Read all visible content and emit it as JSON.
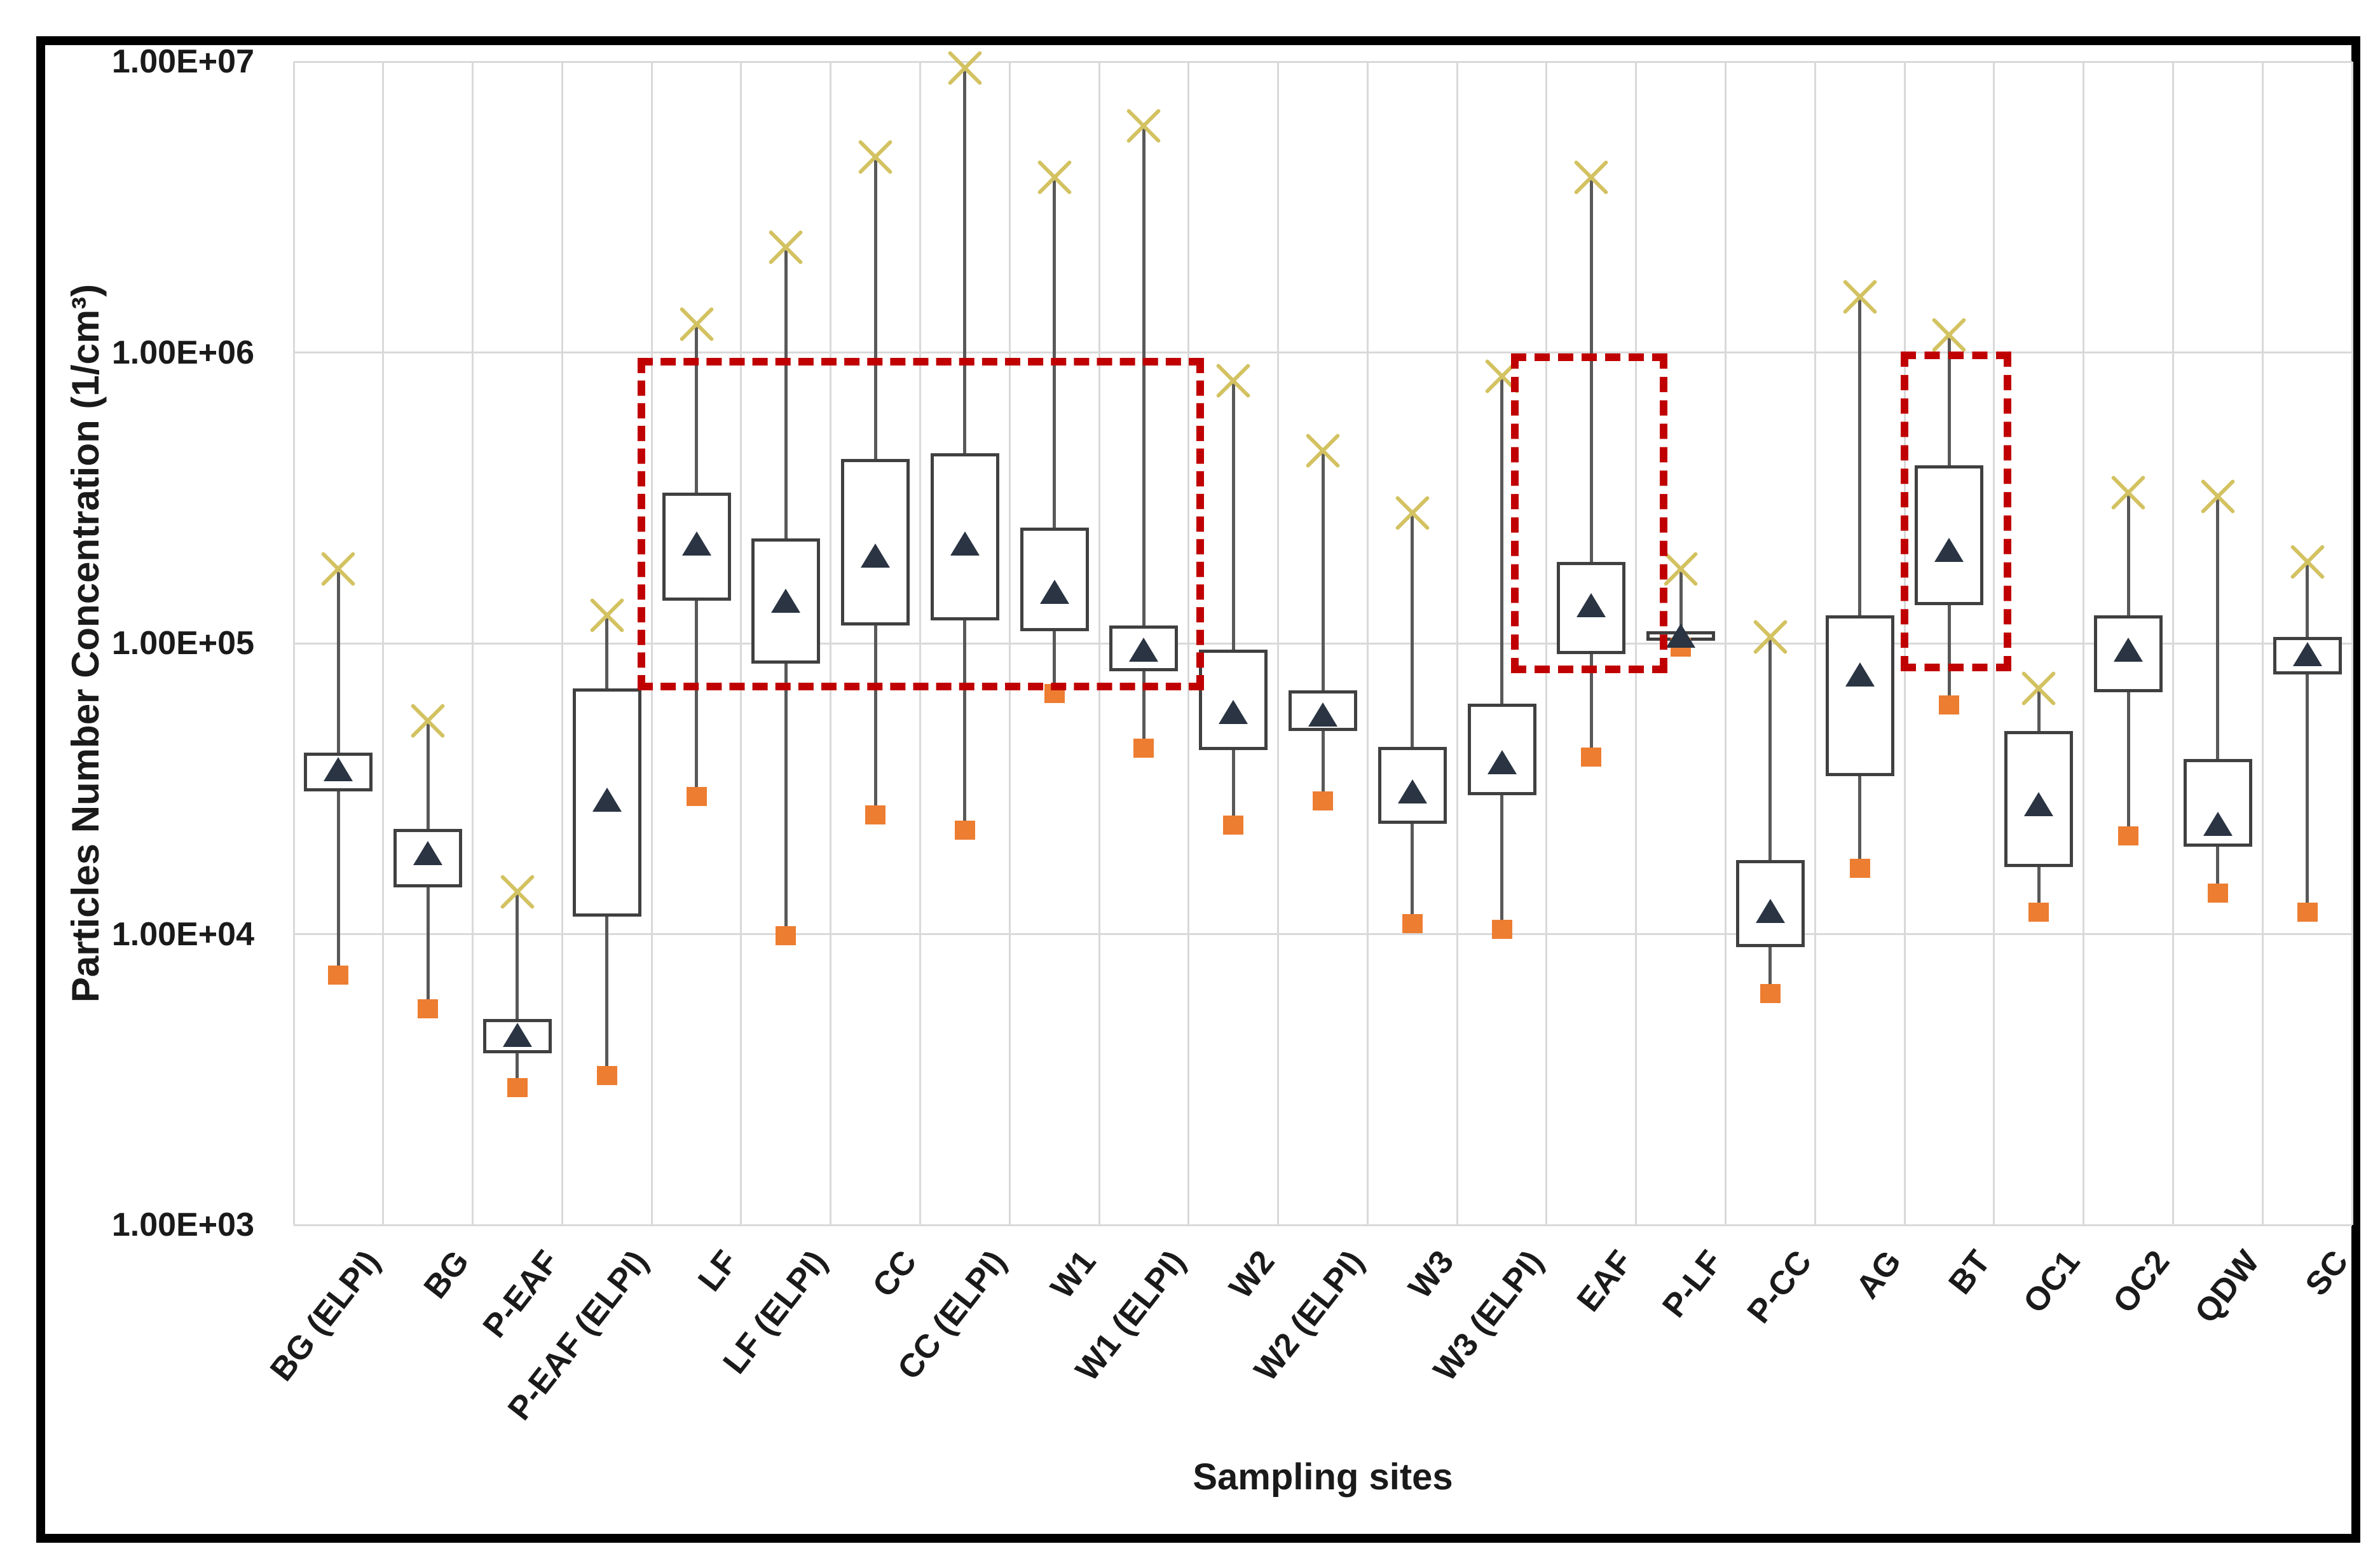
{
  "figure": {
    "y_axis_title": "Particles Number Concentration  (1/cm³)",
    "x_axis_title": "Sampling sites"
  },
  "chart_data": {
    "type": "box",
    "title": "",
    "xlabel": "Sampling sites",
    "ylabel": "Particles Number Concentration  (1/cm³)",
    "y_scale": "log",
    "ylim": [
      1000,
      10000000
    ],
    "grid": true,
    "legend_position": "none",
    "marker_meaning": {
      "max": "pale-yellow-x-marker",
      "mean": "dark-navy-triangle-marker",
      "min": "orange-square-marker",
      "box": "interquartile-range-white-box"
    },
    "y_ticks": [
      {
        "label": "1.00E+07",
        "value": 10000000
      },
      {
        "label": "1.00E+06",
        "value": 1000000
      },
      {
        "label": "1.00E+05",
        "value": 100000
      },
      {
        "label": "1.00E+04",
        "value": 10000
      },
      {
        "label": "1.00E+03",
        "value": 1000
      }
    ],
    "boxes": [
      {
        "site": "BG (ELPI)",
        "min": 7300,
        "q1": 31000,
        "mean": 37000,
        "q3": 42000,
        "max": 180000
      },
      {
        "site": "BG",
        "min": 5600,
        "q1": 14500,
        "mean": 19000,
        "q3": 23000,
        "max": 54000
      },
      {
        "site": "P-EAF",
        "min": 3000,
        "q1": 3900,
        "mean": 4500,
        "q3": 5100,
        "max": 14000
      },
      {
        "site": "P-EAF (ELPI)",
        "min": 3300,
        "q1": 11500,
        "mean": 29000,
        "q3": 70000,
        "max": 125000
      },
      {
        "site": "LF",
        "min": 30000,
        "q1": 140000,
        "mean": 220000,
        "q3": 330000,
        "max": 1250000
      },
      {
        "site": "LF (ELPI)",
        "min": 10000,
        "q1": 85000,
        "mean": 140000,
        "q3": 230000,
        "max": 2300000
      },
      {
        "site": "CC",
        "min": 26000,
        "q1": 115000,
        "mean": 200000,
        "q3": 430000,
        "max": 4700000
      },
      {
        "site": "CC (ELPI)",
        "min": 23000,
        "q1": 120000,
        "mean": 220000,
        "q3": 450000,
        "max": 9500000
      },
      {
        "site": "W1",
        "min": 68000,
        "q1": 110000,
        "mean": 150000,
        "q3": 250000,
        "max": 4000000
      },
      {
        "site": "W1 (ELPI)",
        "min": 44000,
        "q1": 80000,
        "mean": 95000,
        "q3": 115000,
        "max": 6000000
      },
      {
        "site": "W2",
        "min": 24000,
        "q1": 43000,
        "mean": 58000,
        "q3": 95000,
        "max": 800000
      },
      {
        "site": "W2 (ELPI)",
        "min": 29000,
        "q1": 50000,
        "mean": 57000,
        "q3": 69000,
        "max": 460000
      },
      {
        "site": "W3",
        "min": 11000,
        "q1": 24000,
        "mean": 31000,
        "q3": 44000,
        "max": 280000
      },
      {
        "site": "W3 (ELPI)",
        "min": 10500,
        "q1": 30000,
        "mean": 39000,
        "q3": 62000,
        "max": 830000
      },
      {
        "site": "EAF",
        "min": 41000,
        "q1": 92000,
        "mean": 135000,
        "q3": 190000,
        "max": 4000000
      },
      {
        "site": "P-LF",
        "min": 98000,
        "q1": 102000,
        "mean": 106000,
        "q3": 110000,
        "max": 180000
      },
      {
        "site": "P-CC",
        "min": 6300,
        "q1": 9000,
        "mean": 12000,
        "q3": 18000,
        "max": 105000
      },
      {
        "site": "AG",
        "min": 17000,
        "q1": 35000,
        "mean": 78000,
        "q3": 125000,
        "max": 1550000
      },
      {
        "site": "BT",
        "min": 62000,
        "q1": 135000,
        "mean": 210000,
        "q3": 410000,
        "max": 1150000
      },
      {
        "site": "OC1",
        "min": 12000,
        "q1": 17000,
        "mean": 28000,
        "q3": 50000,
        "max": 70000
      },
      {
        "site": "OC2",
        "min": 22000,
        "q1": 68000,
        "mean": 95000,
        "q3": 125000,
        "max": 330000
      },
      {
        "site": "QDW",
        "min": 14000,
        "q1": 20000,
        "mean": 24000,
        "q3": 40000,
        "max": 320000
      },
      {
        "site": "SC",
        "min": 12000,
        "q1": 78000,
        "mean": 92000,
        "q3": 105000,
        "max": 190000
      }
    ],
    "highlight_rects": [
      {
        "col_start": 3.84,
        "col_end": 10.17,
        "value_top": 960000,
        "value_bottom": 69000,
        "covers_sites": "LF to W1 (ELPI)"
      },
      {
        "col_start": 13.6,
        "col_end": 15.35,
        "value_top": 990000,
        "value_bottom": 79000,
        "covers_sites": "EAF"
      },
      {
        "col_start": 17.96,
        "col_end": 19.19,
        "value_top": 1010000,
        "value_bottom": 80000,
        "covers_sites": "BT"
      }
    ]
  },
  "colors": {
    "frame": "#000000",
    "gridline": "#d9d9d9",
    "whisker": "#595959",
    "box_border": "#404040",
    "box_fill": "#ffffff",
    "mean_triangle": "#2a3442",
    "min_square": "#ed7d31",
    "max_x": "#d3c261",
    "highlight_dash": "#c00000",
    "text": "#1a1a1a"
  }
}
